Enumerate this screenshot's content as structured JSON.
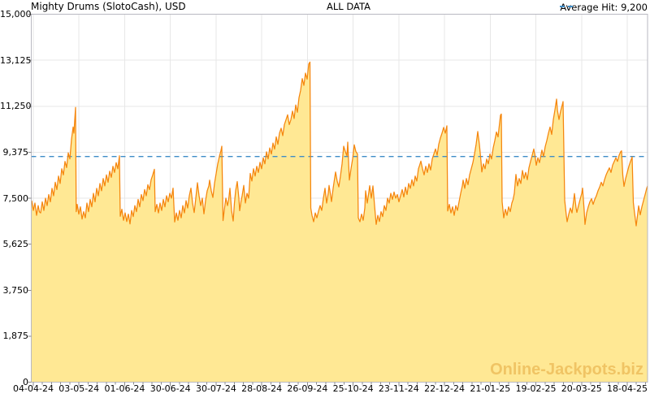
{
  "header": {
    "title": "Mighty Drums (SlotoCash), USD",
    "range_label": "ALL DATA",
    "legend_label": "Average Hit: 9,200"
  },
  "watermark": "Online-Jackpots.biz",
  "colors": {
    "line": "#F5860D",
    "fill": "#FFE894",
    "average": "#3E8CC7",
    "grid": "#E7E7E7",
    "border": "#B9B9C2",
    "tick": "#8A8A8A",
    "text": "#000000",
    "watermark": "#F0C464"
  },
  "chart_data": {
    "type": "area",
    "title": "ALL DATA",
    "series_name": "Mighty Drums (SlotoCash), USD",
    "currency": "USD",
    "average_hit": 9200,
    "ylim": [
      0,
      15000
    ],
    "grid": true,
    "legend_position": "top-right",
    "y_ticks": {
      "labels": [
        "15,000",
        "13,125",
        "11,250",
        "9,375",
        "7,500",
        "5,625",
        "3,750",
        "1,875",
        "0"
      ],
      "values": [
        15000,
        13125,
        11250,
        9375,
        7500,
        5625,
        3750,
        1875,
        0
      ]
    },
    "x_ticks": [
      "04-04-24",
      "03-05-24",
      "01-06-24",
      "30-06-24",
      "30-07-24",
      "28-08-24",
      "26-09-24",
      "25-10-24",
      "23-11-24",
      "22-12-24",
      "21-01-25",
      "19-02-25",
      "20-03-25",
      "18-04-25"
    ],
    "noise": {
      "seed": 7,
      "amplitude": 110
    },
    "points": [
      [
        39,
        7400
      ],
      [
        41,
        7000
      ],
      [
        43,
        7300
      ],
      [
        45,
        6800
      ],
      [
        47,
        7200
      ],
      [
        50,
        6900
      ],
      [
        52,
        7350
      ],
      [
        54,
        7000
      ],
      [
        56,
        7500
      ],
      [
        58,
        7200
      ],
      [
        60,
        7650
      ],
      [
        62,
        7350
      ],
      [
        64,
        7900
      ],
      [
        66,
        7600
      ],
      [
        68,
        8150
      ],
      [
        70,
        7850
      ],
      [
        72,
        8400
      ],
      [
        74,
        8100
      ],
      [
        76,
        8700
      ],
      [
        78,
        8450
      ],
      [
        80,
        9000
      ],
      [
        82,
        8750
      ],
      [
        84,
        9350
      ],
      [
        86,
        9100
      ],
      [
        88,
        9900
      ],
      [
        90,
        10400
      ],
      [
        91,
        10150
      ],
      [
        92,
        10700
      ],
      [
        93,
        11200
      ],
      [
        93.8,
        6950
      ],
      [
        95,
        7250
      ],
      [
        97,
        6850
      ],
      [
        99,
        7150
      ],
      [
        101,
        6650
      ],
      [
        103,
        6950
      ],
      [
        105,
        6700
      ],
      [
        107,
        7300
      ],
      [
        109,
        6950
      ],
      [
        111,
        7450
      ],
      [
        113,
        7150
      ],
      [
        115,
        7700
      ],
      [
        117,
        7350
      ],
      [
        119,
        7900
      ],
      [
        121,
        7600
      ],
      [
        123,
        8100
      ],
      [
        125,
        7800
      ],
      [
        127,
        8300
      ],
      [
        129,
        8000
      ],
      [
        131,
        8450
      ],
      [
        133,
        8150
      ],
      [
        135,
        8600
      ],
      [
        137,
        8350
      ],
      [
        139,
        8800
      ],
      [
        141,
        8550
      ],
      [
        143,
        8950
      ],
      [
        145,
        8700
      ],
      [
        147,
        9230
      ],
      [
        148,
        6760
      ],
      [
        150,
        7050
      ],
      [
        152,
        6600
      ],
      [
        154,
        6900
      ],
      [
        156,
        6550
      ],
      [
        158,
        6850
      ],
      [
        160,
        6450
      ],
      [
        162,
        7000
      ],
      [
        164,
        6750
      ],
      [
        166,
        7200
      ],
      [
        168,
        6950
      ],
      [
        170,
        7450
      ],
      [
        172,
        7150
      ],
      [
        174,
        7650
      ],
      [
        176,
        7400
      ],
      [
        178,
        7850
      ],
      [
        180,
        7600
      ],
      [
        182,
        8050
      ],
      [
        184,
        7850
      ],
      [
        186,
        8250
      ],
      [
        188,
        8450
      ],
      [
        190,
        8680
      ],
      [
        191,
        6950
      ],
      [
        193,
        7250
      ],
      [
        195,
        6900
      ],
      [
        197,
        7300
      ],
      [
        199,
        7000
      ],
      [
        201,
        7450
      ],
      [
        203,
        7150
      ],
      [
        205,
        7600
      ],
      [
        207,
        7350
      ],
      [
        209,
        7700
      ],
      [
        211,
        7500
      ],
      [
        213,
        7910
      ],
      [
        215,
        6530
      ],
      [
        217,
        6900
      ],
      [
        219,
        6600
      ],
      [
        221,
        7000
      ],
      [
        223,
        6700
      ],
      [
        225,
        7200
      ],
      [
        227,
        6900
      ],
      [
        229,
        7400
      ],
      [
        231,
        7100
      ],
      [
        233,
        7600
      ],
      [
        235,
        7910
      ],
      [
        237,
        7300
      ],
      [
        239,
        6915
      ],
      [
        241,
        7500
      ],
      [
        243,
        8130
      ],
      [
        245,
        7600
      ],
      [
        247,
        7200
      ],
      [
        249,
        7500
      ],
      [
        251,
        6860
      ],
      [
        253,
        7400
      ],
      [
        255,
        7800
      ],
      [
        257,
        8000
      ],
      [
        258,
        8240
      ],
      [
        260,
        7800
      ],
      [
        262,
        7530
      ],
      [
        264,
        8100
      ],
      [
        266,
        8500
      ],
      [
        268,
        8900
      ],
      [
        270,
        9200
      ],
      [
        272,
        9450
      ],
      [
        273,
        9620
      ],
      [
        274.5,
        6585
      ],
      [
        276,
        7000
      ],
      [
        278,
        7500
      ],
      [
        280,
        7200
      ],
      [
        283,
        7905
      ],
      [
        285,
        7000
      ],
      [
        287,
        6570
      ],
      [
        290,
        7800
      ],
      [
        292,
        8180
      ],
      [
        294,
        7500
      ],
      [
        295,
        6990
      ],
      [
        298,
        7600
      ],
      [
        300,
        8020
      ],
      [
        302,
        7300
      ],
      [
        304,
        7700
      ],
      [
        306,
        7500
      ],
      [
        308,
        8510
      ],
      [
        310,
        8200
      ],
      [
        312,
        8700
      ],
      [
        314,
        8400
      ],
      [
        316,
        8800
      ],
      [
        318,
        8550
      ],
      [
        320,
        8960
      ],
      [
        322,
        8700
      ],
      [
        324,
        9150
      ],
      [
        326,
        8900
      ],
      [
        328,
        9390
      ],
      [
        330,
        9100
      ],
      [
        332,
        9550
      ],
      [
        334,
        9300
      ],
      [
        336,
        9750
      ],
      [
        338,
        9500
      ],
      [
        340,
        10000
      ],
      [
        342,
        9700
      ],
      [
        344,
        10150
      ],
      [
        346,
        10350
      ],
      [
        348,
        10050
      ],
      [
        350,
        10500
      ],
      [
        352,
        10700
      ],
      [
        354,
        10900
      ],
      [
        356,
        10500
      ],
      [
        358,
        10700
      ],
      [
        360,
        11050
      ],
      [
        362,
        10750
      ],
      [
        364,
        11300
      ],
      [
        366,
        11000
      ],
      [
        368,
        11600
      ],
      [
        370,
        11900
      ],
      [
        372,
        12375
      ],
      [
        374,
        12100
      ],
      [
        376,
        12600
      ],
      [
        378,
        12350
      ],
      [
        380,
        12970
      ],
      [
        381.5,
        13050
      ],
      [
        382.5,
        7100
      ],
      [
        384,
        6800
      ],
      [
        386,
        6540
      ],
      [
        388,
        6900
      ],
      [
        390,
        6700
      ],
      [
        392,
        6970
      ],
      [
        394,
        7200
      ],
      [
        396,
        7000
      ],
      [
        398,
        7500
      ],
      [
        400,
        7905
      ],
      [
        402,
        7300
      ],
      [
        404,
        7700
      ],
      [
        405,
        8020
      ],
      [
        407,
        7600
      ],
      [
        408,
        7360
      ],
      [
        410,
        7900
      ],
      [
        413,
        8570
      ],
      [
        415,
        8200
      ],
      [
        417,
        7960
      ],
      [
        419,
        8400
      ],
      [
        421,
        8900
      ],
      [
        423,
        9620
      ],
      [
        425,
        9400
      ],
      [
        427,
        9230
      ],
      [
        428,
        9785
      ],
      [
        430,
        8240
      ],
      [
        432,
        8700
      ],
      [
        434,
        9100
      ],
      [
        436,
        9675
      ],
      [
        438,
        9400
      ],
      [
        440,
        9300
      ],
      [
        441,
        6695
      ],
      [
        443,
        6540
      ],
      [
        445,
        6850
      ],
      [
        447,
        6600
      ],
      [
        449,
        7100
      ],
      [
        450,
        7800
      ],
      [
        452,
        7300
      ],
      [
        455,
        8010
      ],
      [
        457,
        7500
      ],
      [
        459,
        8000
      ],
      [
        461,
        7200
      ],
      [
        463,
        6430
      ],
      [
        465,
        6800
      ],
      [
        467,
        6550
      ],
      [
        469,
        6950
      ],
      [
        471,
        6750
      ],
      [
        473,
        7200
      ],
      [
        475,
        7000
      ],
      [
        477,
        7500
      ],
      [
        479,
        7300
      ],
      [
        481,
        7700
      ],
      [
        483,
        7450
      ],
      [
        485,
        7750
      ],
      [
        487,
        7500
      ],
      [
        489,
        7650
      ],
      [
        491,
        7350
      ],
      [
        493,
        7600
      ],
      [
        495,
        7850
      ],
      [
        497,
        7550
      ],
      [
        499,
        7950
      ],
      [
        501,
        7650
      ],
      [
        503,
        8100
      ],
      [
        505,
        7900
      ],
      [
        507,
        8250
      ],
      [
        509,
        8000
      ],
      [
        511,
        8400
      ],
      [
        513,
        8200
      ],
      [
        515,
        8700
      ],
      [
        518,
        9010
      ],
      [
        520,
        8700
      ],
      [
        522,
        8450
      ],
      [
        524,
        8800
      ],
      [
        526,
        8550
      ],
      [
        528,
        8900
      ],
      [
        530,
        8650
      ],
      [
        532,
        9100
      ],
      [
        534,
        9300
      ],
      [
        536,
        9505
      ],
      [
        538,
        9250
      ],
      [
        540,
        9700
      ],
      [
        542,
        9950
      ],
      [
        544,
        10150
      ],
      [
        546,
        10385
      ],
      [
        548,
        10150
      ],
      [
        550,
        10450
      ],
      [
        551,
        6980
      ],
      [
        553,
        7250
      ],
      [
        555,
        6900
      ],
      [
        557,
        7150
      ],
      [
        559,
        6800
      ],
      [
        561,
        7200
      ],
      [
        563,
        7000
      ],
      [
        565,
        7350
      ],
      [
        567,
        7700
      ],
      [
        569,
        8000
      ],
      [
        570,
        8240
      ],
      [
        572,
        7900
      ],
      [
        574,
        8300
      ],
      [
        576,
        8050
      ],
      [
        578,
        8450
      ],
      [
        580,
        8700
      ],
      [
        582,
        8950
      ],
      [
        584,
        9300
      ],
      [
        586,
        9700
      ],
      [
        588,
        10220
      ],
      [
        590,
        9700
      ],
      [
        592,
        9000
      ],
      [
        593,
        8570
      ],
      [
        595,
        8900
      ],
      [
        597,
        8700
      ],
      [
        599,
        9100
      ],
      [
        601,
        8900
      ],
      [
        603,
        9300
      ],
      [
        605,
        9100
      ],
      [
        607,
        9550
      ],
      [
        609,
        9850
      ],
      [
        611,
        10200
      ],
      [
        613,
        10000
      ],
      [
        615,
        10600
      ],
      [
        616,
        10880
      ],
      [
        617,
        10930
      ],
      [
        618,
        7360
      ],
      [
        620,
        6700
      ],
      [
        622,
        7050
      ],
      [
        624,
        6800
      ],
      [
        626,
        7150
      ],
      [
        628,
        6950
      ],
      [
        630,
        7300
      ],
      [
        633,
        7700
      ],
      [
        635,
        8470
      ],
      [
        637,
        8000
      ],
      [
        639,
        8300
      ],
      [
        641,
        8100
      ],
      [
        643,
        8630
      ],
      [
        645,
        8300
      ],
      [
        647,
        8550
      ],
      [
        649,
        8250
      ],
      [
        651,
        8740
      ],
      [
        653,
        9000
      ],
      [
        655,
        9250
      ],
      [
        657,
        9505
      ],
      [
        659,
        9100
      ],
      [
        660,
        8840
      ],
      [
        662,
        9150
      ],
      [
        664,
        8950
      ],
      [
        666,
        9300
      ],
      [
        667,
        9460
      ],
      [
        669,
        9200
      ],
      [
        671,
        9600
      ],
      [
        673,
        9850
      ],
      [
        675,
        10150
      ],
      [
        677,
        10400
      ],
      [
        679,
        10100
      ],
      [
        681,
        10700
      ],
      [
        683,
        11100
      ],
      [
        685,
        11540
      ],
      [
        686,
        11100
      ],
      [
        688,
        10710
      ],
      [
        690,
        11050
      ],
      [
        692,
        11300
      ],
      [
        693,
        11440
      ],
      [
        695,
        7420
      ],
      [
        697,
        6800
      ],
      [
        698,
        6540
      ],
      [
        700,
        6850
      ],
      [
        702,
        7100
      ],
      [
        704,
        6900
      ],
      [
        706,
        7400
      ],
      [
        707,
        7690
      ],
      [
        709,
        7100
      ],
      [
        710,
        6920
      ],
      [
        712,
        7200
      ],
      [
        714,
        7450
      ],
      [
        716,
        7700
      ],
      [
        717,
        7910
      ],
      [
        719,
        7000
      ],
      [
        720,
        6430
      ],
      [
        722,
        6900
      ],
      [
        724,
        7150
      ],
      [
        726,
        7350
      ],
      [
        728,
        7480
      ],
      [
        730,
        7250
      ],
      [
        732,
        7450
      ],
      [
        734,
        7600
      ],
      [
        736,
        7800
      ],
      [
        738,
        7950
      ],
      [
        740,
        8150
      ],
      [
        742,
        8000
      ],
      [
        744,
        8250
      ],
      [
        746,
        8450
      ],
      [
        748,
        8600
      ],
      [
        750,
        8740
      ],
      [
        752,
        8550
      ],
      [
        754,
        8850
      ],
      [
        756,
        9000
      ],
      [
        758,
        9150
      ],
      [
        760,
        9000
      ],
      [
        762,
        9250
      ],
      [
        764,
        9400
      ],
      [
        765,
        9430
      ],
      [
        766.5,
        8450
      ],
      [
        768,
        7980
      ],
      [
        770,
        8300
      ],
      [
        772,
        8550
      ],
      [
        774,
        8800
      ],
      [
        776,
        9000
      ],
      [
        778,
        9180
      ],
      [
        779.5,
        7320
      ],
      [
        781,
        6900
      ],
      [
        783,
        6370
      ],
      [
        785,
        6900
      ],
      [
        786,
        7190
      ],
      [
        788,
        6820
      ],
      [
        790,
        7150
      ],
      [
        792,
        7400
      ],
      [
        794,
        7650
      ],
      [
        796,
        7910
      ],
      [
        797,
        8000
      ]
    ]
  }
}
